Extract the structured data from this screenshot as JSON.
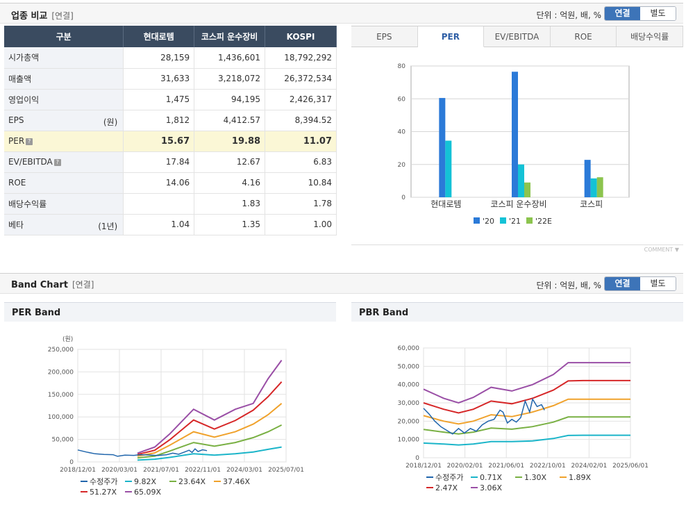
{
  "compare": {
    "title": "업종 비교",
    "sub": "[연결]",
    "unit": "단위 : 억원, 배, %",
    "toggle_on": "연결",
    "toggle_off": "별도",
    "headers": [
      "구분",
      "현대로템",
      "코스피 운수장비",
      "KOSPI"
    ],
    "rows": [
      {
        "label": "시가총액",
        "note": "",
        "q": false,
        "values": [
          "28,159",
          "1,436,601",
          "18,792,292"
        ]
      },
      {
        "label": "매출액",
        "note": "",
        "q": false,
        "values": [
          "31,633",
          "3,218,072",
          "26,372,534"
        ]
      },
      {
        "label": "영업이익",
        "note": "",
        "q": false,
        "values": [
          "1,475",
          "94,195",
          "2,426,317"
        ]
      },
      {
        "label": "EPS",
        "note": "(원)",
        "q": false,
        "values": [
          "1,812",
          "4,412.57",
          "8,394.52"
        ]
      },
      {
        "label": "PER",
        "note": "",
        "q": true,
        "values": [
          "15.67",
          "19.88",
          "11.07"
        ]
      },
      {
        "label": "EV/EBITDA",
        "note": "",
        "q": true,
        "values": [
          "17.84",
          "12.67",
          "6.83"
        ]
      },
      {
        "label": "ROE",
        "note": "",
        "q": false,
        "values": [
          "14.06",
          "4.16",
          "10.84"
        ]
      },
      {
        "label": "배당수익률",
        "note": "",
        "q": false,
        "values": [
          "",
          "1.83",
          "1.78"
        ]
      },
      {
        "label": "베타",
        "note": "(1년)",
        "q": false,
        "values": [
          "1.04",
          "1.35",
          "1.00"
        ]
      }
    ],
    "highlight_row": 4,
    "q_icon": "?",
    "tabs": [
      "EPS",
      "PER",
      "EV/EBITDA",
      "ROE",
      "배당수익률"
    ],
    "active_tab": 1,
    "comment_link": "COMMENT"
  },
  "band": {
    "title": "Band Chart",
    "sub": "[연결]",
    "unit": "단위 : 억원, 배, %",
    "toggle_on": "연결",
    "toggle_off": "별도",
    "per_title": "PER Band",
    "pbr_title": "PBR Band"
  },
  "chart_data": [
    {
      "type": "bar",
      "categories": [
        "현대로템",
        "코스피 운수장비",
        "코스피"
      ],
      "series": [
        {
          "name": "'20",
          "color": "#2b7ad8",
          "values": [
            60.5,
            76.5,
            22.8
          ]
        },
        {
          "name": "'21",
          "color": "#14c2d6",
          "values": [
            34.5,
            20.0,
            11.5
          ]
        },
        {
          "name": "'22E",
          "color": "#8cc44e",
          "values": [
            0,
            9.0,
            12.2
          ]
        }
      ],
      "ylim": [
        0,
        80
      ],
      "yticks": [
        0,
        20,
        40,
        60,
        80
      ]
    },
    {
      "type": "line",
      "title": "PER Band",
      "ylabel": "(원)",
      "ylim": [
        0,
        250000
      ],
      "yticks": [
        "0",
        "50,000",
        "100,000",
        "150,000",
        "200,000",
        "250,000"
      ],
      "xticks": [
        "2018/12/01",
        "2020/03/01",
        "2021/07/01",
        "2022/11/01",
        "2024/03/01",
        "2025/07/01"
      ],
      "series": [
        {
          "name": "수정주가",
          "color": "#2166ac",
          "points": [
            [
              2018.92,
              26500
            ],
            [
              2019.2,
              22000
            ],
            [
              2019.5,
              18000
            ],
            [
              2019.8,
              16500
            ],
            [
              2020.1,
              16000
            ],
            [
              2020.25,
              12500
            ],
            [
              2020.5,
              15000
            ],
            [
              2020.8,
              14500
            ],
            [
              2021.0,
              16000
            ],
            [
              2021.3,
              15500
            ],
            [
              2021.6,
              14000
            ],
            [
              2021.9,
              16000
            ],
            [
              2022.1,
              19500
            ],
            [
              2022.3,
              17000
            ],
            [
              2022.5,
              22000
            ],
            [
              2022.65,
              26000
            ],
            [
              2022.75,
              21000
            ],
            [
              2022.85,
              29000
            ],
            [
              2022.95,
              23000
            ],
            [
              2023.1,
              27000
            ],
            [
              2023.25,
              25000
            ]
          ]
        },
        {
          "name": "9.82X",
          "color": "#1bb5c9",
          "points": [
            [
              2020.92,
              4000
            ],
            [
              2021.5,
              6000
            ],
            [
              2022.0,
              10000
            ],
            [
              2022.8,
              18000
            ],
            [
              2023.5,
              15000
            ],
            [
              2024.2,
              18000
            ],
            [
              2024.8,
              22000
            ],
            [
              2025.3,
              28000
            ],
            [
              2025.75,
              33000
            ]
          ]
        },
        {
          "name": "23.64X",
          "color": "#79b043",
          "points": [
            [
              2020.92,
              9000
            ],
            [
              2021.5,
              13000
            ],
            [
              2022.0,
              24000
            ],
            [
              2022.8,
              43000
            ],
            [
              2023.5,
              35000
            ],
            [
              2024.2,
              43000
            ],
            [
              2024.8,
              54000
            ],
            [
              2025.3,
              67000
            ],
            [
              2025.75,
              82000
            ]
          ]
        },
        {
          "name": "37.46X",
          "color": "#f0a22c",
          "points": [
            [
              2020.92,
              13000
            ],
            [
              2021.5,
              20000
            ],
            [
              2022.0,
              37000
            ],
            [
              2022.8,
              67000
            ],
            [
              2023.5,
              55000
            ],
            [
              2024.2,
              67000
            ],
            [
              2024.8,
              84000
            ],
            [
              2025.3,
              105000
            ],
            [
              2025.75,
              130000
            ]
          ]
        },
        {
          "name": "51.27X",
          "color": "#d62728",
          "points": [
            [
              2020.92,
              16500
            ],
            [
              2021.5,
              26000
            ],
            [
              2022.0,
              49000
            ],
            [
              2022.8,
              93000
            ],
            [
              2023.5,
              73000
            ],
            [
              2024.2,
              92000
            ],
            [
              2024.8,
              115000
            ],
            [
              2025.3,
              145000
            ],
            [
              2025.75,
              178000
            ]
          ]
        },
        {
          "name": "65.09X",
          "color": "#9a4fa6",
          "points": [
            [
              2020.92,
              19500
            ],
            [
              2021.5,
              33000
            ],
            [
              2022.0,
              62000
            ],
            [
              2022.8,
              117000
            ],
            [
              2023.5,
              93000
            ],
            [
              2024.2,
              117000
            ],
            [
              2024.8,
              130000
            ],
            [
              2025.3,
              185000
            ],
            [
              2025.75,
              226000
            ]
          ]
        }
      ]
    },
    {
      "type": "line",
      "title": "PBR Band",
      "ylabel": "",
      "ylim": [
        0,
        60000
      ],
      "yticks": [
        "0",
        "10,000",
        "20,000",
        "30,000",
        "40,000",
        "50,000",
        "60,000"
      ],
      "xticks": [
        "2018/12/01",
        "2020/02/01",
        "2021/06/01",
        "2022/10/01",
        "2024/02/01",
        "2025/06/01"
      ],
      "series": [
        {
          "name": "수정주가",
          "color": "#2166ac",
          "points": [
            [
              2018.92,
              27000
            ],
            [
              2019.1,
              24000
            ],
            [
              2019.3,
              20000
            ],
            [
              2019.5,
              17000
            ],
            [
              2019.7,
              15000
            ],
            [
              2019.9,
              13000
            ],
            [
              2020.1,
              16000
            ],
            [
              2020.3,
              13500
            ],
            [
              2020.5,
              16000
            ],
            [
              2020.7,
              14500
            ],
            [
              2020.9,
              18000
            ],
            [
              2021.1,
              20000
            ],
            [
              2021.3,
              21000
            ],
            [
              2021.5,
              26000
            ],
            [
              2021.6,
              25000
            ],
            [
              2021.75,
              19000
            ],
            [
              2021.9,
              21000
            ],
            [
              2022.05,
              19500
            ],
            [
              2022.2,
              22000
            ],
            [
              2022.35,
              31000
            ],
            [
              2022.5,
              25000
            ],
            [
              2022.6,
              32000
            ],
            [
              2022.75,
              28000
            ],
            [
              2022.9,
              29000
            ],
            [
              2023.0,
              26000
            ]
          ]
        },
        {
          "name": "0.71X",
          "color": "#1bb5c9",
          "points": [
            [
              2018.92,
              8000
            ],
            [
              2019.6,
              7500
            ],
            [
              2020.1,
              7000
            ],
            [
              2020.6,
              7500
            ],
            [
              2021.2,
              8800
            ],
            [
              2021.9,
              8800
            ],
            [
              2022.6,
              9200
            ],
            [
              2023.3,
              10500
            ],
            [
              2023.8,
              12200
            ],
            [
              2024.3,
              12300
            ],
            [
              2025.9,
              12300
            ]
          ]
        },
        {
          "name": "1.30X",
          "color": "#79b043",
          "points": [
            [
              2018.92,
              15500
            ],
            [
              2019.6,
              14000
            ],
            [
              2020.1,
              13000
            ],
            [
              2020.6,
              14000
            ],
            [
              2021.2,
              16200
            ],
            [
              2021.9,
              15600
            ],
            [
              2022.6,
              17000
            ],
            [
              2023.3,
              19500
            ],
            [
              2023.8,
              22300
            ],
            [
              2024.3,
              22300
            ],
            [
              2025.9,
              22300
            ]
          ]
        },
        {
          "name": "1.89X",
          "color": "#f0a22c",
          "points": [
            [
              2018.92,
              23000
            ],
            [
              2019.6,
              20000
            ],
            [
              2020.1,
              18500
            ],
            [
              2020.6,
              20000
            ],
            [
              2021.2,
              23500
            ],
            [
              2021.9,
              22500
            ],
            [
              2022.6,
              25000
            ],
            [
              2023.3,
              28500
            ],
            [
              2023.8,
              32000
            ],
            [
              2024.3,
              32000
            ],
            [
              2025.9,
              32000
            ]
          ]
        },
        {
          "name": "2.47X",
          "color": "#d62728",
          "points": [
            [
              2018.92,
              30000
            ],
            [
              2019.6,
              26500
            ],
            [
              2020.1,
              24500
            ],
            [
              2020.6,
              26500
            ],
            [
              2021.2,
              31000
            ],
            [
              2021.9,
              29500
            ],
            [
              2022.6,
              32500
            ],
            [
              2023.3,
              37000
            ],
            [
              2023.8,
              42000
            ],
            [
              2024.3,
              42200
            ],
            [
              2025.9,
              42200
            ]
          ]
        },
        {
          "name": "3.06X",
          "color": "#9a4fa6",
          "points": [
            [
              2018.92,
              37500
            ],
            [
              2019.6,
              32500
            ],
            [
              2020.1,
              30000
            ],
            [
              2020.6,
              33000
            ],
            [
              2021.2,
              38500
            ],
            [
              2021.9,
              36500
            ],
            [
              2022.6,
              40000
            ],
            [
              2023.3,
              45500
            ],
            [
              2023.8,
              52000
            ],
            [
              2024.3,
              52000
            ],
            [
              2025.9,
              52000
            ]
          ]
        }
      ]
    }
  ]
}
